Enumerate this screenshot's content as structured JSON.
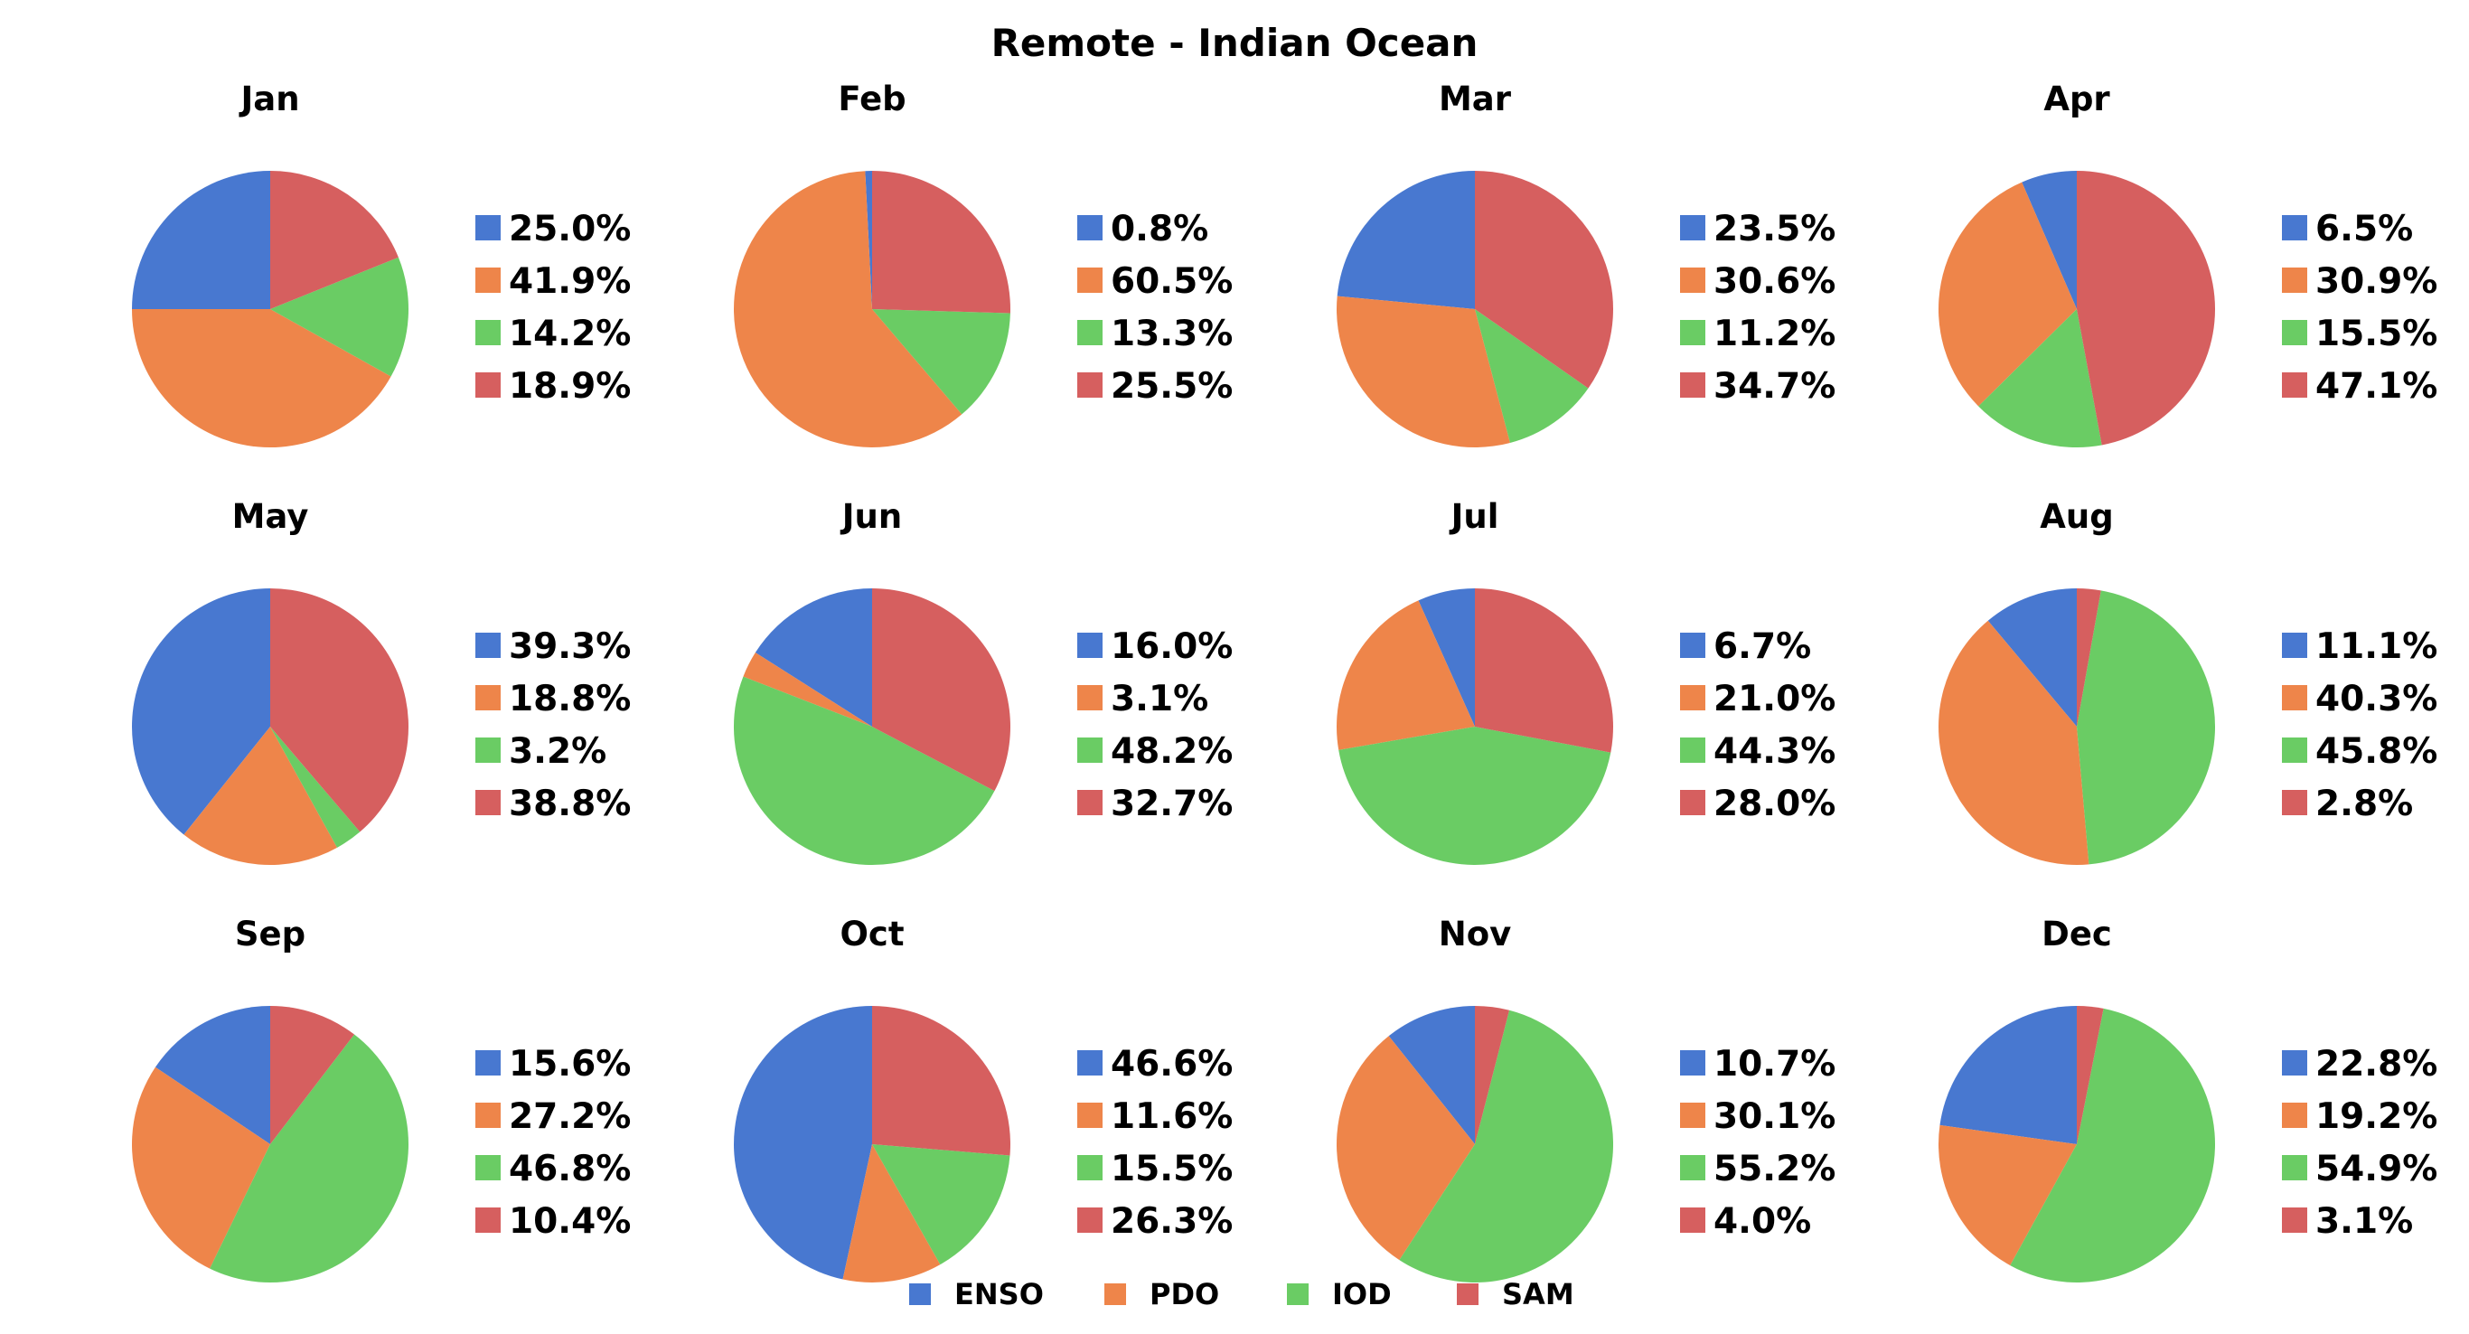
{
  "chart_data": {
    "type": "pie",
    "title": "Remote - Indian Ocean",
    "legend": {
      "position": "bottom-center",
      "entries": [
        "ENSO",
        "PDO",
        "IOD",
        "SAM"
      ]
    },
    "colors": {
      "ENSO": "#4878d0",
      "PDO": "#ee854a",
      "IOD": "#6acc64",
      "SAM": "#d65f5f"
    },
    "categories": [
      "ENSO",
      "PDO",
      "IOD",
      "SAM"
    ],
    "pies": [
      {
        "title": "Jan",
        "values": [
          25.0,
          41.9,
          14.2,
          18.9
        ],
        "labels": [
          "25.0%",
          "41.9%",
          "14.2%",
          "18.9%"
        ]
      },
      {
        "title": "Feb",
        "values": [
          0.8,
          60.5,
          13.3,
          25.5
        ],
        "labels": [
          "0.8%",
          "60.5%",
          "13.3%",
          "25.5%"
        ]
      },
      {
        "title": "Mar",
        "values": [
          23.5,
          30.6,
          11.2,
          34.7
        ],
        "labels": [
          "23.5%",
          "30.6%",
          "11.2%",
          "34.7%"
        ]
      },
      {
        "title": "Apr",
        "values": [
          6.5,
          30.9,
          15.5,
          47.1
        ],
        "labels": [
          "6.5%",
          "30.9%",
          "15.5%",
          "47.1%"
        ]
      },
      {
        "title": "May",
        "values": [
          39.3,
          18.8,
          3.2,
          38.8
        ],
        "labels": [
          "39.3%",
          "18.8%",
          "3.2%",
          "38.8%"
        ]
      },
      {
        "title": "Jun",
        "values": [
          16.0,
          3.1,
          48.2,
          32.7
        ],
        "labels": [
          "16.0%",
          "3.1%",
          "48.2%",
          "32.7%"
        ]
      },
      {
        "title": "Jul",
        "values": [
          6.7,
          21.0,
          44.3,
          28.0
        ],
        "labels": [
          "6.7%",
          "21.0%",
          "44.3%",
          "28.0%"
        ]
      },
      {
        "title": "Aug",
        "values": [
          11.1,
          40.3,
          45.8,
          2.8
        ],
        "labels": [
          "11.1%",
          "40.3%",
          "45.8%",
          "2.8%"
        ]
      },
      {
        "title": "Sep",
        "values": [
          15.6,
          27.2,
          46.8,
          10.4
        ],
        "labels": [
          "15.6%",
          "27.2%",
          "46.8%",
          "10.4%"
        ]
      },
      {
        "title": "Oct",
        "values": [
          46.6,
          11.6,
          15.5,
          26.3
        ],
        "labels": [
          "46.6%",
          "11.6%",
          "15.5%",
          "26.3%"
        ]
      },
      {
        "title": "Nov",
        "values": [
          10.7,
          30.1,
          55.2,
          4.0
        ],
        "labels": [
          "10.7%",
          "30.1%",
          "55.2%",
          "4.0%"
        ]
      },
      {
        "title": "Dec",
        "values": [
          22.8,
          19.2,
          54.9,
          3.1
        ],
        "labels": [
          "22.8%",
          "19.2%",
          "54.9%",
          "3.1%"
        ]
      }
    ]
  }
}
